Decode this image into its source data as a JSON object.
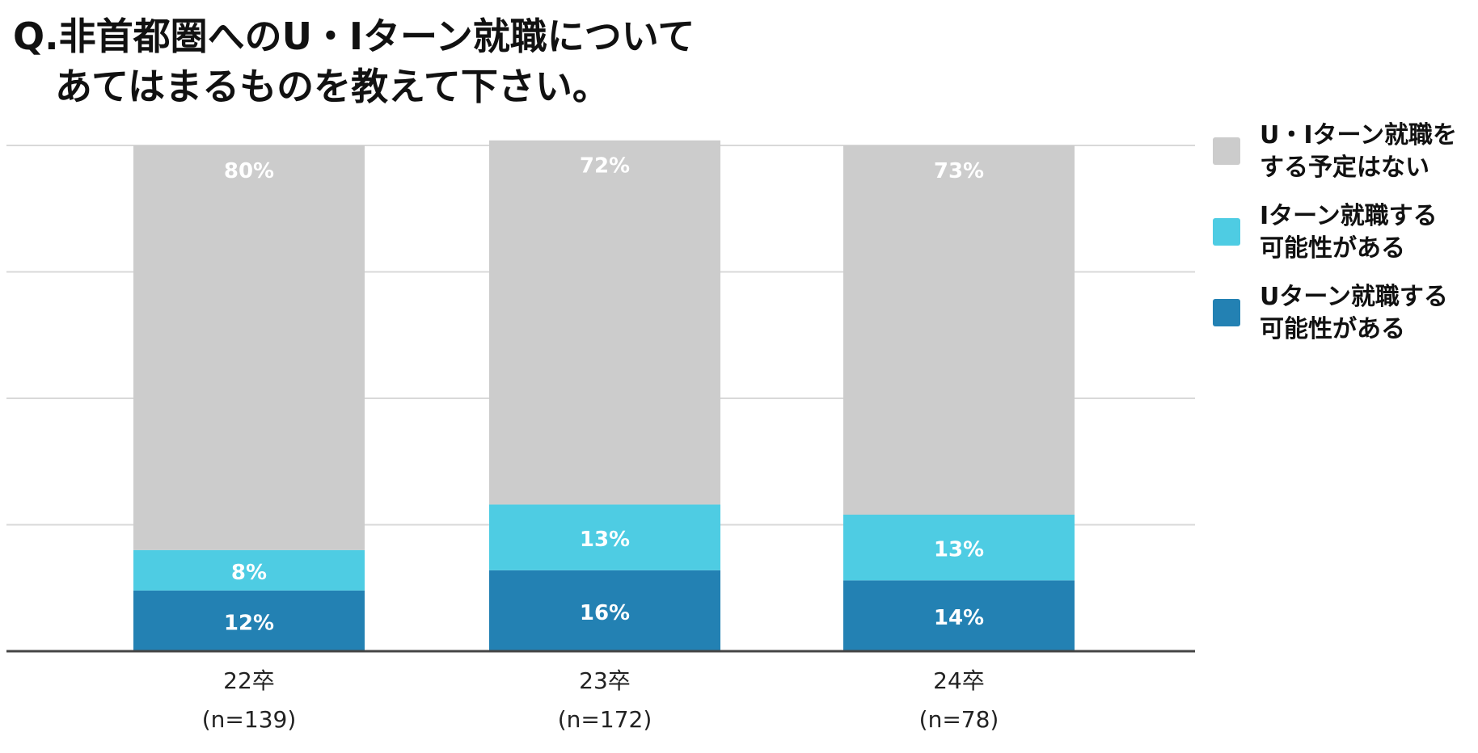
{
  "title": {
    "line1": "Q.非首都圏へのU・Iターン就職について",
    "line2": "あてはまるものを教えて下さい。"
  },
  "chart_data": {
    "type": "bar",
    "stacked": true,
    "categories": [
      "22卒",
      "23卒",
      "24卒"
    ],
    "sample_sizes": [
      "(n=139)",
      "(n=172)",
      "(n=78)"
    ],
    "ylim": [
      0,
      100
    ],
    "grid": true,
    "legend_position": "right",
    "series": [
      {
        "name": "Uターン就職する可能性がある",
        "color": "#2381b3",
        "values": [
          12,
          16,
          14
        ],
        "labels": [
          "12%",
          "16%",
          "14%"
        ]
      },
      {
        "name": "Iターン就職する可能性がある",
        "color": "#4ecce3",
        "values": [
          8,
          13,
          13
        ],
        "labels": [
          "8%",
          "13%",
          "13%"
        ]
      },
      {
        "name": "U・Iターン就職をする予定はない",
        "color": "#cccccc",
        "values": [
          80,
          72,
          73
        ],
        "labels": [
          "80%",
          "72%",
          "73%"
        ]
      }
    ]
  },
  "legend": [
    {
      "lines": [
        "U・Iターン就職を",
        "する予定はない"
      ],
      "color": "#cccccc"
    },
    {
      "lines": [
        "Iターン就職する",
        "可能性がある"
      ],
      "color": "#4ecce3"
    },
    {
      "lines": [
        "Uターン就職する",
        "可能性がある"
      ],
      "color": "#2381b3"
    }
  ]
}
